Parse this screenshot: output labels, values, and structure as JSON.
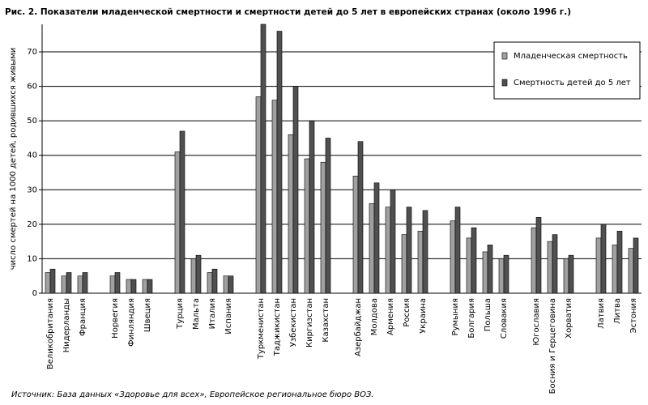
{
  "chart_data": {
    "type": "bar",
    "title": "Рис. 2. Показатели младенческой смертности и смертности детей до 5 лет в европейских странах (около 1996 г.)",
    "y_label": "число смертей на 1000 детей, родившихся живыми",
    "source": "Источник: База данных «Здоровье для всех», Европейское региональное бюро ВОЗ.",
    "categories": [
      "Великобритания",
      "Нидерланды",
      "Франция",
      null,
      "Норвегия",
      "Финляндия",
      "Швеция",
      null,
      "Турция",
      "Мальта",
      "Италия",
      "Испания",
      null,
      "Туркменистан",
      "Таджикистан",
      "Узбекистан",
      "Киргизстан",
      "Казахстан",
      null,
      "Азербайджан",
      "Молдова",
      "Армения",
      "Россия",
      "Украина",
      null,
      "Румыния",
      "Болгария",
      "Польша",
      "Словакия",
      null,
      "Югославия",
      "Босния и Герцеговина",
      "Хорватия",
      null,
      "Латвия",
      "Литва",
      "Эстония"
    ],
    "series": [
      {
        "name": "Младенческая смертность",
        "color": "#a0a0a0",
        "values": [
          6,
          5,
          5,
          null,
          5,
          4,
          4,
          null,
          41,
          10,
          6,
          5,
          null,
          57,
          56,
          46,
          39,
          38,
          null,
          34,
          26,
          25,
          17,
          18,
          null,
          21,
          16,
          12,
          10,
          null,
          19,
          15,
          10,
          null,
          16,
          14,
          13
        ]
      },
      {
        "name": "Смертность детей до 5 лет",
        "color": "#505050",
        "values": [
          7,
          6,
          6,
          null,
          6,
          4,
          4,
          null,
          47,
          11,
          7,
          5,
          null,
          78,
          76,
          60,
          50,
          45,
          null,
          44,
          32,
          30,
          25,
          24,
          null,
          25,
          19,
          14,
          11,
          null,
          22,
          17,
          11,
          null,
          20,
          18,
          16
        ]
      }
    ],
    "ylim": [
      0,
      78
    ],
    "yticks": [
      0,
      10,
      20,
      30,
      40,
      50,
      60,
      70
    ],
    "grid": true,
    "legend": "upper right"
  }
}
